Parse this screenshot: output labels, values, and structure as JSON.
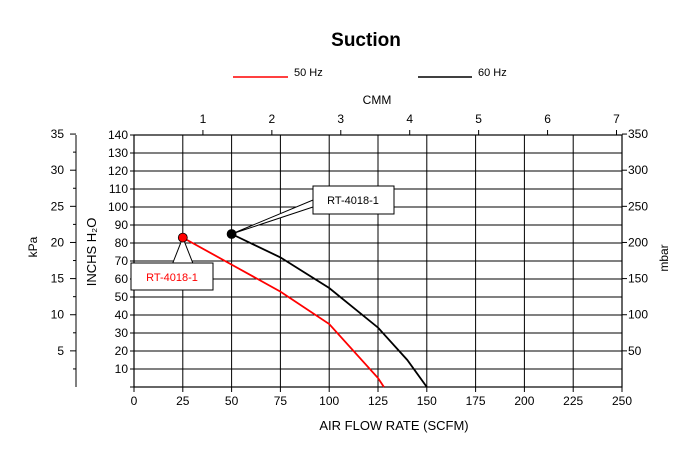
{
  "chart_data": {
    "type": "line",
    "title": "Suction",
    "xlabel": "AIR FLOW RATE (SCFM)",
    "xlim": [
      0,
      250
    ],
    "xticks": [
      "0",
      "25",
      "50",
      "75",
      "100",
      "125",
      "150",
      "175",
      "200",
      "225",
      "250"
    ],
    "ylabel": "INCHS H₂O",
    "ylim": [
      0,
      140
    ],
    "yticks": [
      "10",
      "20",
      "30",
      "40",
      "50",
      "60",
      "70",
      "80",
      "90",
      "100",
      "110",
      "120",
      "130",
      "140"
    ],
    "top_axis": {
      "label": "CMM",
      "range": [
        0,
        7.08
      ],
      "ticks": [
        "1",
        "2",
        "3",
        "4",
        "5",
        "6",
        "7"
      ]
    },
    "left_axis": {
      "label": "kPa",
      "range": [
        0,
        34.87
      ],
      "ticks": [
        "5",
        "10",
        "15",
        "20",
        "25",
        "30",
        "35"
      ]
    },
    "right_axis": {
      "label": "mbar",
      "range": [
        0,
        348.7
      ],
      "ticks": [
        "50",
        "100",
        "150",
        "200",
        "250",
        "300",
        "350"
      ]
    },
    "grid": true,
    "legend_position": "top-center",
    "series": [
      {
        "name": "50 Hz",
        "color": "#ff0000",
        "x": [
          25,
          50,
          75,
          100,
          125,
          128
        ],
        "y": [
          83,
          68,
          53,
          35,
          5,
          0
        ],
        "marker_label": "RT-4018-1"
      },
      {
        "name": "60 Hz",
        "color": "#000000",
        "x": [
          50,
          75,
          100,
          125,
          140,
          150
        ],
        "y": [
          85,
          72,
          55,
          33,
          15,
          0
        ],
        "marker_label": "RT-4018-1"
      }
    ]
  }
}
